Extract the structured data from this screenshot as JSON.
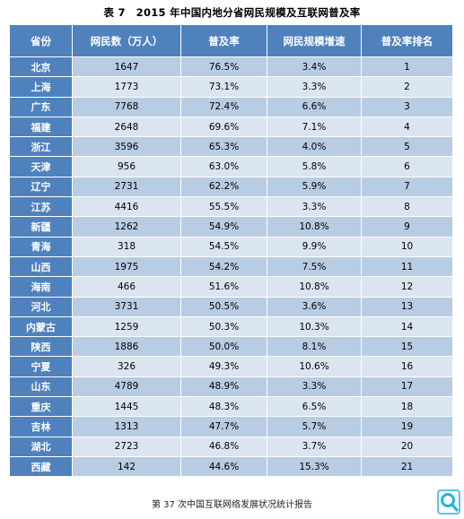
{
  "title": "表 7　2015 年中国内地分省网民规模及互联网普及率",
  "headers": [
    "省份",
    "网民数（万人）",
    "普及率",
    "网民规模增速",
    "普及率排名"
  ],
  "rows": [
    {
      "province": "北京",
      "users": "1647",
      "rate": "76.5%",
      "growth": "3.4%",
      "rank": "1"
    },
    {
      "province": "上海",
      "users": "1773",
      "rate": "73.1%",
      "growth": "3.3%",
      "rank": "2"
    },
    {
      "province": "广东",
      "users": "7768",
      "rate": "72.4%",
      "growth": "6.6%",
      "rank": "3"
    },
    {
      "province": "福建",
      "users": "2648",
      "rate": "69.6%",
      "growth": "7.1%",
      "rank": "4"
    },
    {
      "province": "浙江",
      "users": "3596",
      "rate": "65.3%",
      "growth": "4.0%",
      "rank": "5"
    },
    {
      "province": "天津",
      "users": "956",
      "rate": "63.0%",
      "growth": "5.8%",
      "rank": "6"
    },
    {
      "province": "辽宁",
      "users": "2731",
      "rate": "62.2%",
      "growth": "5.9%",
      "rank": "7"
    },
    {
      "province": "江苏",
      "users": "4416",
      "rate": "55.5%",
      "growth": "3.3%",
      "rank": "8"
    },
    {
      "province": "新疆",
      "users": "1262",
      "rate": "54.9%",
      "growth": "10.8%",
      "rank": "9"
    },
    {
      "province": "青海",
      "users": "318",
      "rate": "54.5%",
      "growth": "9.9%",
      "rank": "10"
    },
    {
      "province": "山西",
      "users": "1975",
      "rate": "54.2%",
      "growth": "7.5%",
      "rank": "11"
    },
    {
      "province": "海南",
      "users": "466",
      "rate": "51.6%",
      "growth": "10.8%",
      "rank": "12"
    },
    {
      "province": "河北",
      "users": "3731",
      "rate": "50.5%",
      "growth": "3.6%",
      "rank": "13"
    },
    {
      "province": "内蒙古",
      "users": "1259",
      "rate": "50.3%",
      "growth": "10.3%",
      "rank": "14"
    },
    {
      "province": "陕西",
      "users": "1886",
      "rate": "50.0%",
      "growth": "8.1%",
      "rank": "15"
    },
    {
      "province": "宁夏",
      "users": "326",
      "rate": "49.3%",
      "growth": "10.6%",
      "rank": "16"
    },
    {
      "province": "山东",
      "users": "4789",
      "rate": "48.9%",
      "growth": "3.3%",
      "rank": "17"
    },
    {
      "province": "重庆",
      "users": "1445",
      "rate": "48.3%",
      "growth": "6.5%",
      "rank": "18"
    },
    {
      "province": "吉林",
      "users": "1313",
      "rate": "47.7%",
      "growth": "5.7%",
      "rank": "19"
    },
    {
      "province": "湖北",
      "users": "2723",
      "rate": "46.8%",
      "growth": "3.7%",
      "rank": "20"
    },
    {
      "province": "西藏",
      "users": "142",
      "rate": "44.6%",
      "growth": "15.3%",
      "rank": "21"
    }
  ],
  "footer": "第 37 次中国互联网络发展状况统计报告",
  "colors": {
    "header": "#4f81bd",
    "row_dark": "#b8cce4",
    "row_light": "#dbe5f1",
    "logo": "#2ab0d9"
  },
  "logo_icon": "magnifier-logo-icon"
}
